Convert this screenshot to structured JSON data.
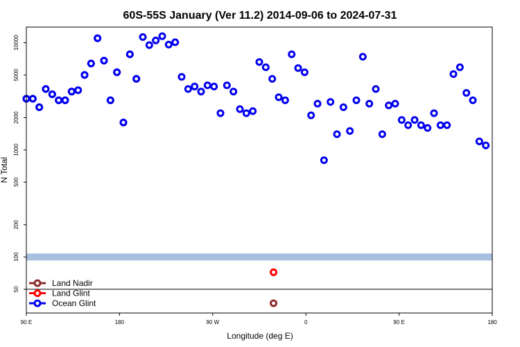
{
  "chart_data": {
    "type": "scatter",
    "title": "60S-55S January (Ver 11.2)   2014-09-06 to 2024-07-31",
    "xlabel": "Longitude (deg E)",
    "ylabel": "N Total",
    "y_scale": "log",
    "ylim": [
      30,
      14000
    ],
    "x_ticks": [
      "90 E",
      "180",
      "90 W",
      "0",
      "90 E",
      "180"
    ],
    "y_ticks": [
      "50",
      "100",
      "200",
      "500",
      "1000",
      "2000",
      "5000",
      "10000"
    ],
    "reference_band": {
      "y": 100,
      "color": "#a8bfe0"
    },
    "reference_line": {
      "y": 50,
      "color": "#000000"
    },
    "series": [
      {
        "name": "Land Nadir",
        "color": "#8b2a2a",
        "points": [
          [
            -79,
            37
          ]
        ]
      },
      {
        "name": "Land Glint",
        "color": "#ff0000",
        "points": [
          [
            -79,
            72
          ]
        ]
      },
      {
        "name": "Ocean Glint",
        "color": "#0000ee",
        "points": [
          [
            90,
            3000
          ],
          [
            95,
            3000
          ],
          [
            100,
            2500
          ],
          [
            105,
            3700
          ],
          [
            110,
            3300
          ],
          [
            115,
            2900
          ],
          [
            120,
            2900
          ],
          [
            125,
            3500
          ],
          [
            130,
            3600
          ],
          [
            135,
            5000
          ],
          [
            140,
            6400
          ],
          [
            145,
            11000
          ],
          [
            150,
            6800
          ],
          [
            155,
            2900
          ],
          [
            160,
            5300
          ],
          [
            165,
            1800
          ],
          [
            170,
            7800
          ],
          [
            175,
            4600
          ],
          [
            180,
            11300
          ],
          [
            -175,
            9500
          ],
          [
            -170,
            10500
          ],
          [
            -165,
            11500
          ],
          [
            -160,
            9600
          ],
          [
            -155,
            10100
          ],
          [
            -150,
            4800
          ],
          [
            -145,
            3700
          ],
          [
            -140,
            3900
          ],
          [
            -135,
            3500
          ],
          [
            -130,
            4000
          ],
          [
            -125,
            3900
          ],
          [
            -120,
            2200
          ],
          [
            -115,
            4000
          ],
          [
            -110,
            3500
          ],
          [
            -105,
            2400
          ],
          [
            -100,
            2200
          ],
          [
            -95,
            2300
          ],
          [
            -90,
            6600
          ],
          [
            -85,
            5900
          ],
          [
            -80,
            4600
          ],
          [
            -75,
            3100
          ],
          [
            -70,
            2900
          ],
          [
            -65,
            7800
          ],
          [
            -60,
            5800
          ],
          [
            -55,
            5300
          ],
          [
            -50,
            2100
          ],
          [
            -45,
            2700
          ],
          [
            -40,
            800
          ],
          [
            -35,
            2800
          ],
          [
            -30,
            1400
          ],
          [
            -25,
            2500
          ],
          [
            -20,
            1500
          ],
          [
            -15,
            2900
          ],
          [
            -10,
            7400
          ],
          [
            -5,
            2700
          ],
          [
            0,
            3700
          ],
          [
            5,
            1400
          ],
          [
            10,
            2600
          ],
          [
            15,
            2700
          ],
          [
            20,
            1900
          ],
          [
            25,
            1700
          ],
          [
            30,
            1900
          ],
          [
            35,
            1700
          ],
          [
            40,
            1600
          ],
          [
            45,
            2200
          ],
          [
            50,
            1700
          ],
          [
            55,
            1700
          ],
          [
            60,
            5100
          ],
          [
            65,
            5900
          ],
          [
            70,
            3400
          ],
          [
            75,
            2900
          ],
          [
            80,
            1200
          ],
          [
            85,
            1100
          ],
          [
            90,
            3000
          ],
          [
            95,
            3000
          ],
          [
            100,
            2500
          ],
          [
            105,
            3700
          ],
          [
            110,
            3300
          ],
          [
            115,
            2900
          ],
          [
            120,
            2900
          ],
          [
            125,
            3500
          ],
          [
            130,
            3600
          ],
          [
            135,
            5000
          ],
          [
            140,
            6400
          ],
          [
            145,
            11000
          ],
          [
            150,
            6800
          ],
          [
            155,
            2900
          ],
          [
            160,
            5300
          ],
          [
            165,
            1800
          ],
          [
            170,
            7800
          ],
          [
            175,
            4600
          ]
        ]
      }
    ],
    "legend": {
      "placement": "bottom-left"
    }
  }
}
